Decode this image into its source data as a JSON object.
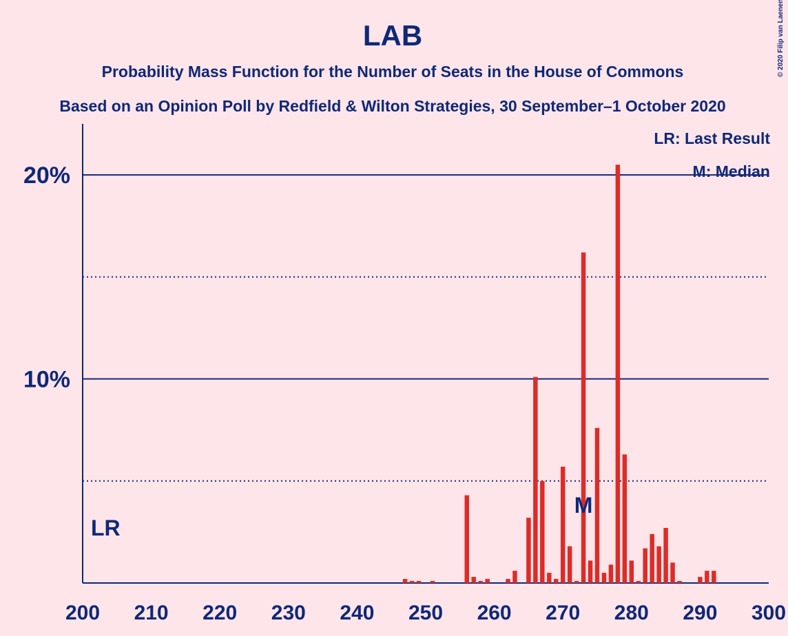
{
  "chart_data": {
    "type": "bar",
    "title": "LAB",
    "subtitle": "Probability Mass Function for the Number of Seats in the House of Commons",
    "subtitle2": "Based on an Opinion Poll by Redfield & Wilton Strategies, 30 September–1 October 2020",
    "copyright": "© 2020 Filip van Laenen",
    "legend": [
      "LR: Last Result",
      "M: Median"
    ],
    "legend_position": "upper right",
    "annotations": [
      {
        "text": "LR",
        "x": 201
      },
      {
        "text": "M",
        "x": 273
      }
    ],
    "color": "#dd2c28",
    "x": [
      200,
      201,
      202,
      203,
      204,
      205,
      206,
      207,
      208,
      209,
      210,
      211,
      212,
      213,
      214,
      215,
      216,
      217,
      218,
      219,
      220,
      221,
      222,
      223,
      224,
      225,
      226,
      227,
      228,
      229,
      230,
      231,
      232,
      233,
      234,
      235,
      236,
      237,
      238,
      239,
      240,
      241,
      242,
      243,
      244,
      245,
      246,
      247,
      248,
      249,
      250,
      251,
      252,
      253,
      254,
      255,
      256,
      257,
      258,
      259,
      260,
      261,
      262,
      263,
      264,
      265,
      266,
      267,
      268,
      269,
      270,
      271,
      272,
      273,
      274,
      275,
      276,
      277,
      278,
      279,
      280,
      281,
      282,
      283,
      284,
      285,
      286,
      287,
      288,
      289,
      290,
      291,
      292,
      293,
      294,
      295,
      296,
      297,
      298,
      299,
      300
    ],
    "values": [
      0,
      0,
      0,
      0,
      0,
      0,
      0,
      0,
      0,
      0,
      0,
      0,
      0,
      0,
      0,
      0,
      0,
      0,
      0,
      0,
      0,
      0,
      0,
      0,
      0,
      0,
      0,
      0,
      0,
      0,
      0,
      0,
      0,
      0,
      0,
      0,
      0,
      0,
      0,
      0,
      0,
      0,
      0,
      0,
      0,
      0,
      0,
      0.2,
      0.1,
      0.1,
      0,
      0.1,
      0,
      0,
      0,
      0,
      4.3,
      0.3,
      0.1,
      0.2,
      0,
      0,
      0.2,
      0.6,
      0,
      3.2,
      10.1,
      5.0,
      0.5,
      0.2,
      5.7,
      1.8,
      0.1,
      16.2,
      1.1,
      7.6,
      0.5,
      0.9,
      20.5,
      6.3,
      1.1,
      0.1,
      1.7,
      2.4,
      1.8,
      2.7,
      1.0,
      0.1,
      0,
      0,
      0.3,
      0.6,
      0.6,
      0,
      0,
      0,
      0,
      0,
      0,
      0,
      0
    ],
    "xlim": [
      200,
      300
    ],
    "xticks": [
      200,
      210,
      220,
      230,
      240,
      250,
      260,
      270,
      280,
      290,
      300
    ],
    "ylim": [
      0,
      22.5
    ],
    "yticks": [
      {
        "value": 10,
        "label": "10%"
      },
      {
        "value": 20,
        "label": "20%"
      }
    ],
    "minor_yticks": [
      5,
      15
    ],
    "grid": true
  }
}
